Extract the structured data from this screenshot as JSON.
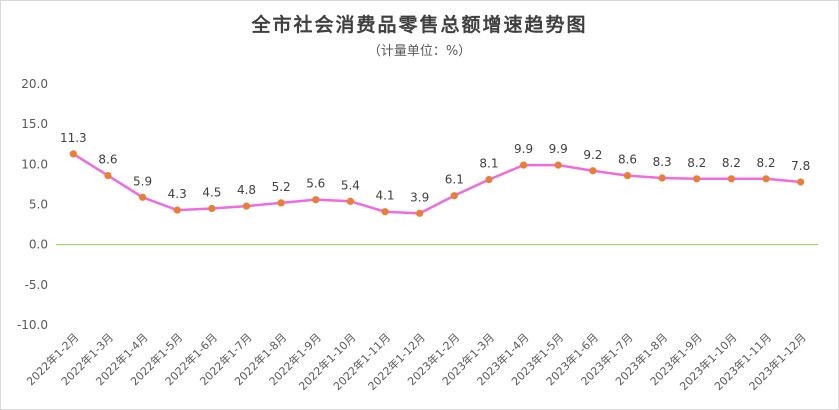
{
  "chart_data": {
    "type": "line",
    "title": "全市社会消费品零售总额增速趋势图",
    "subtitle": "（计量单位：%）",
    "categories": [
      "2022年1-2月",
      "2022年1-3月",
      "2022年1-4月",
      "2022年1-5月",
      "2022年1-6月",
      "2022年1-7月",
      "2022年1-8月",
      "2022年1-9月",
      "2022年1-10月",
      "2022年1-11月",
      "2022年1-12月",
      "2023年1-2月",
      "2023年1-3月",
      "2023年1-4月",
      "2023年1-5月",
      "2023年1-6月",
      "2023年1-7月",
      "2023年1-8月",
      "2023年1-9月",
      "2023年1-10月",
      "2023年1-11月",
      "2023年1-12月"
    ],
    "values": [
      11.3,
      8.6,
      5.9,
      4.3,
      4.5,
      4.8,
      5.2,
      5.6,
      5.4,
      4.1,
      3.9,
      6.1,
      8.1,
      9.9,
      9.9,
      9.2,
      8.6,
      8.3,
      8.2,
      8.2,
      8.2,
      7.8
    ],
    "value_labels": [
      "11.3",
      "8.6",
      "5.9",
      "4.3",
      "4.5",
      "4.8",
      "5.2",
      "5.6",
      "5.4",
      "4.1",
      "3.9",
      "6.1",
      "8.1",
      "9.9",
      "9.9",
      "9.2",
      "8.6",
      "8.3",
      "8.2",
      "8.2",
      "8.2",
      "7.8"
    ],
    "yticks": [
      "20.0",
      "15.0",
      "10.0",
      "5.0",
      "0.0",
      "-5.0",
      "-10.0"
    ],
    "ylim": [
      -10,
      20
    ],
    "grid": false,
    "legend": "none",
    "colors": {
      "line": "#f06ae0",
      "marker": "#ed7d31",
      "zero_line": "#92d050",
      "text": "#595959"
    }
  }
}
